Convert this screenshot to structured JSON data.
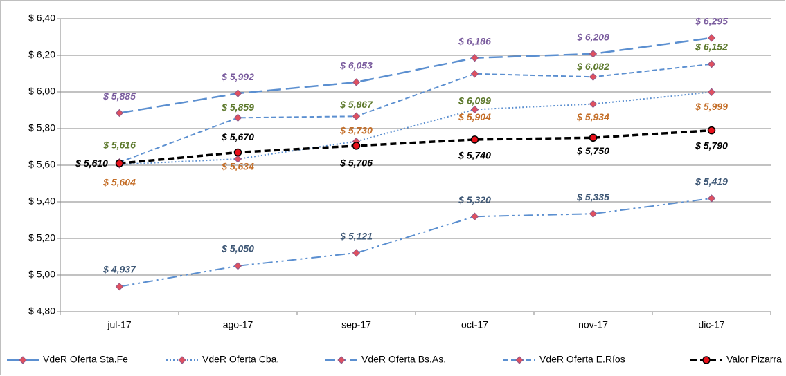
{
  "chart_data": {
    "type": "line",
    "categories": [
      "jul-17",
      "ago-17",
      "sep-17",
      "oct-17",
      "nov-17",
      "dic-17"
    ],
    "ylim": [
      4.8,
      6.4
    ],
    "yticks": [
      {
        "value": 4.8,
        "label": "$ 4,80"
      },
      {
        "value": 5.0,
        "label": "$ 5,00"
      },
      {
        "value": 5.2,
        "label": "$ 5,20"
      },
      {
        "value": 5.4,
        "label": "$ 5,40"
      },
      {
        "value": 5.6,
        "label": "$ 5,60"
      },
      {
        "value": 5.8,
        "label": "$ 5,80"
      },
      {
        "value": 6.0,
        "label": "$ 6,00"
      },
      {
        "value": 6.2,
        "label": "$ 6,20"
      },
      {
        "value": 6.4,
        "label": "$ 6,40"
      }
    ],
    "grid": true,
    "legend": "bottom",
    "series": [
      {
        "name": "VdeR Oferta Sta.Fe",
        "color": "#5b8fd0",
        "marker_color": "#e0505f",
        "label_color": "#7a5c9e",
        "values": [
          5.885,
          5.992,
          6.053,
          6.186,
          6.208,
          6.295
        ],
        "value_labels": [
          "$ 5,885",
          "$ 5,992",
          "$ 6,053",
          "$ 6,186",
          "$ 6,208",
          "$ 6,295"
        ]
      },
      {
        "name": "VdeR Oferta Cba.",
        "color": "#5b8fd0",
        "marker_color": "#e0505f",
        "label_color": "#c46e28",
        "values": [
          5.604,
          5.634,
          5.73,
          5.904,
          5.934,
          5.999
        ],
        "value_labels": [
          "$ 5,604",
          "$ 5,634",
          "$ 5,730",
          "$ 5,904",
          "$ 5,934",
          "$ 5,999"
        ]
      },
      {
        "name": "VdeR Oferta Bs.As.",
        "color": "#5b8fd0",
        "marker_color": "#e0505f",
        "label_color": "#3f5876",
        "values": [
          4.937,
          5.05,
          5.121,
          5.32,
          5.335,
          5.419
        ],
        "value_labels": [
          "$ 4,937",
          "$ 5,050",
          "$ 5,121",
          "$ 5,320",
          "$ 5,335",
          "$ 5,419"
        ]
      },
      {
        "name": "VdeR Oferta E.Ríos",
        "color": "#5b8fd0",
        "marker_color": "#e0505f",
        "label_color": "#5e7a2e",
        "values": [
          5.616,
          5.859,
          5.867,
          6.099,
          6.082,
          6.152
        ],
        "value_labels": [
          "$ 5,616",
          "$ 5,859",
          "$ 5,867",
          "$ 6,099",
          "$ 6,082",
          "$ 6,152"
        ]
      },
      {
        "name": "Valor Pizarra",
        "color": "#000000",
        "marker_color": "#e8101a",
        "label_color": "#000000",
        "values": [
          5.61,
          5.67,
          5.706,
          5.74,
          5.75,
          5.79
        ],
        "value_labels": [
          "$ 5,610",
          "$ 5,670",
          "$ 5,706",
          "$ 5,740",
          "$ 5,750",
          "$ 5,790"
        ]
      }
    ]
  }
}
